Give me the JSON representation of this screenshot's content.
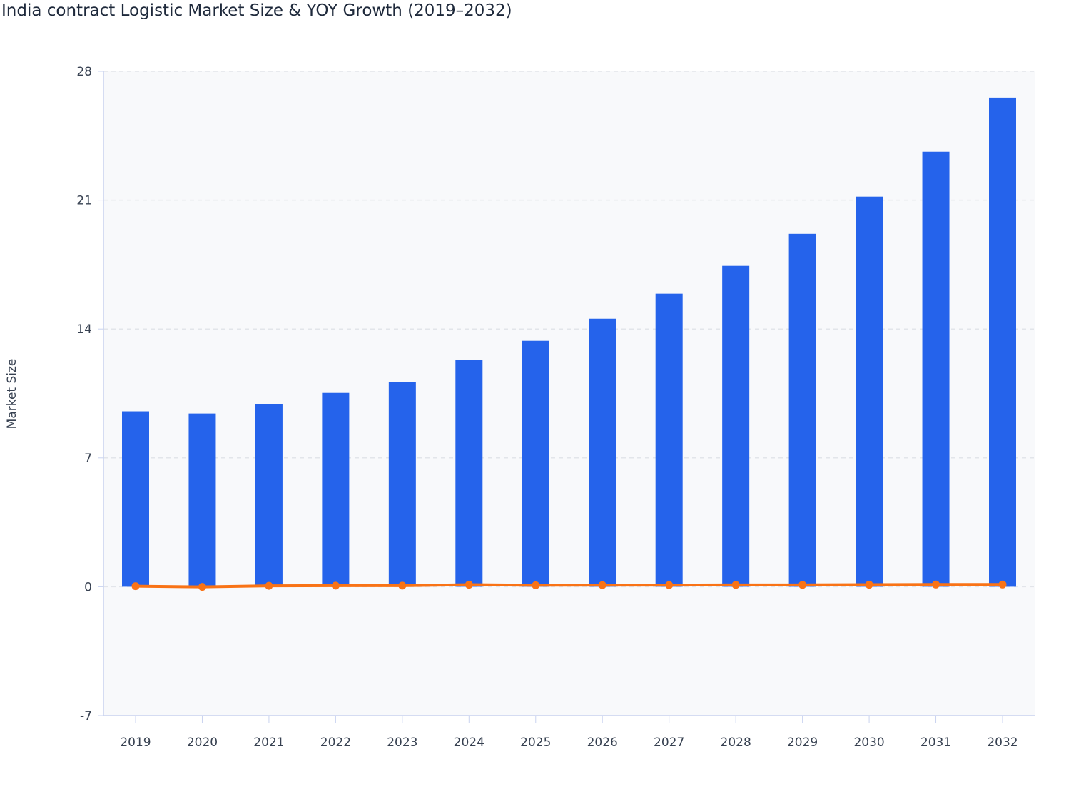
{
  "chart_data": {
    "type": "bar",
    "title": "India contract Logistic Market Size & YOY Growth (2019–2032)",
    "xlabel": "",
    "ylabel": "Market Size",
    "ylim": [
      -7,
      28
    ],
    "yticks": [
      "-7",
      "0",
      "7",
      "14",
      "21",
      "28"
    ],
    "grid": true,
    "legend": "none",
    "categories": [
      "2019",
      "2020",
      "2021",
      "2022",
      "2023",
      "2024",
      "2025",
      "2026",
      "2027",
      "2028",
      "2029",
      "2030",
      "2031",
      "2032"
    ],
    "series": [
      {
        "type": "bar",
        "color": "#2563eb",
        "values": [
          9.53,
          9.41,
          9.91,
          10.53,
          11.12,
          12.32,
          13.36,
          14.56,
          15.92,
          17.43,
          19.17,
          21.19,
          23.63,
          26.57
        ]
      },
      {
        "type": "line",
        "color": "#f97316",
        "values": [
          0.03,
          -0.01,
          0.05,
          0.06,
          0.06,
          0.11,
          0.08,
          0.09,
          0.09,
          0.1,
          0.1,
          0.11,
          0.12,
          0.12
        ]
      }
    ]
  }
}
